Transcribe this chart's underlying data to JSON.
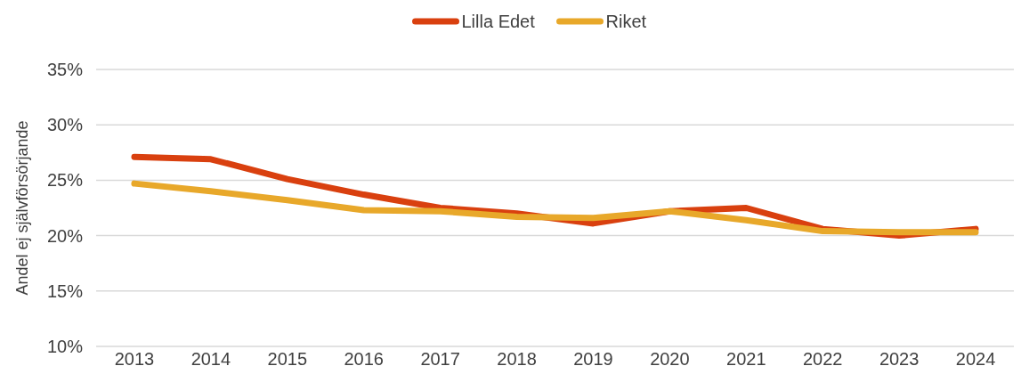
{
  "chart_data": {
    "type": "line",
    "ylabel": "Andel ej självförsörjande",
    "categories": [
      "2013",
      "2014",
      "2015",
      "2016",
      "2017",
      "2018",
      "2019",
      "2020",
      "2021",
      "2022",
      "2023",
      "2024"
    ],
    "series": [
      {
        "name": "Lilla Edet",
        "color": "#d9400f",
        "values": [
          27.1,
          26.9,
          25.1,
          23.7,
          22.5,
          22.0,
          21.1,
          22.2,
          22.5,
          20.6,
          20.0,
          20.6
        ]
      },
      {
        "name": "Riket",
        "color": "#e8a82a",
        "values": [
          24.7,
          24.0,
          23.2,
          22.3,
          22.2,
          21.7,
          21.6,
          22.2,
          21.4,
          20.4,
          20.3,
          20.3
        ]
      }
    ],
    "ylim": [
      10,
      35
    ],
    "yticks": [
      {
        "value": 10,
        "label": "10%"
      },
      {
        "value": 15,
        "label": "15%"
      },
      {
        "value": 20,
        "label": "20%"
      },
      {
        "value": 25,
        "label": "25%"
      },
      {
        "value": 30,
        "label": "30%"
      },
      {
        "value": 35,
        "label": "35%"
      }
    ],
    "grid": "y",
    "legend": "top",
    "marker": "none",
    "line_style": "solid"
  }
}
